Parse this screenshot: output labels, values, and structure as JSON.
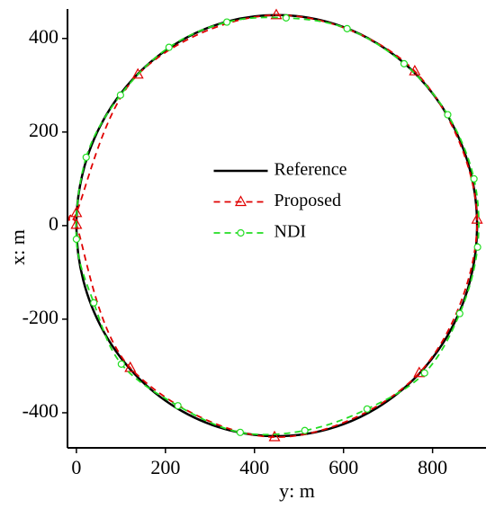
{
  "chart_data": {
    "type": "line",
    "xlabel": "y: m",
    "ylabel": "x: m",
    "xlim": [
      -20,
      920
    ],
    "ylim": [
      -475,
      463
    ],
    "xticks": [
      0,
      200,
      400,
      600,
      800
    ],
    "yticks": [
      -400,
      -200,
      0,
      200,
      400
    ],
    "legend": "center",
    "series": [
      {
        "name": "Reference",
        "color": "#000000",
        "linestyle": "solid",
        "marker": "none",
        "x": [
          900,
          884.7,
          839.7,
          768.2,
          675,
          566.5,
          450,
          333.5,
          225,
          131.8,
          60.3,
          15.3,
          0,
          15.3,
          60.3,
          131.8,
          225,
          333.5,
          450,
          566.5,
          675,
          768.2,
          839.7,
          884.7
        ],
        "values": [
          0,
          116.5,
          225,
          318.2,
          389.7,
          434.7,
          450,
          434.7,
          389.7,
          318.2,
          225,
          116.5,
          0,
          -116.5,
          -225,
          -318.2,
          -389.7,
          -434.7,
          -450,
          -434.7,
          -389.7,
          -318.2,
          -225,
          -116.5
        ]
      },
      {
        "name": "Proposed",
        "color": "#e00000",
        "linestyle": "dashed",
        "marker": "triangle",
        "x": [
          0,
          0,
          138,
          449,
          760,
          900,
          770,
          445,
          121
        ],
        "values": [
          2,
          27,
          323,
          450,
          330,
          13,
          -315,
          -452,
          -304
        ]
      },
      {
        "name": "NDI",
        "color": "#22dd22",
        "linestyle": "dashed",
        "marker": "circle",
        "x": [
          22,
          99,
          208,
          338,
          471,
          608,
          736,
          834,
          893,
          901,
          861,
          782,
          653,
          513,
          368,
          228,
          101,
          39,
          0
        ],
        "values": [
          146,
          279,
          381,
          435,
          444,
          421,
          346,
          237,
          100,
          -46,
          -188,
          -315,
          -392,
          -438,
          -442,
          -385,
          -296,
          -165,
          -29
        ]
      }
    ]
  }
}
